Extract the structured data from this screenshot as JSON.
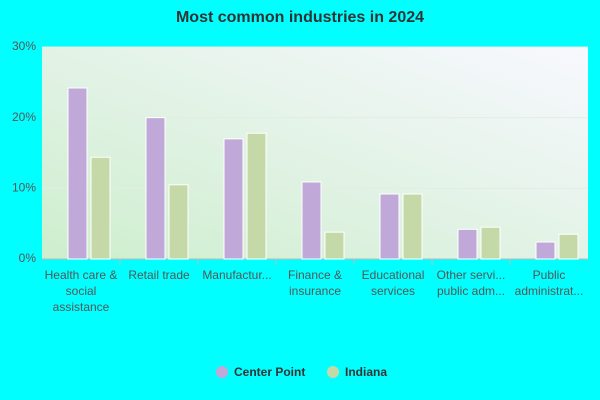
{
  "chart_data": {
    "type": "bar",
    "title": "Most common industries in 2024",
    "categories": [
      "Health care & social assistance",
      "Retail trade",
      "Manufactur...",
      "Finance & insurance",
      "Educational services",
      "Other servi... public adm...",
      "Public administrat..."
    ],
    "series": [
      {
        "name": "Center Point",
        "color": "#c0a8d8",
        "values": [
          24.2,
          20,
          17,
          10.9,
          9.2,
          4.2,
          2.4
        ]
      },
      {
        "name": "Indiana",
        "color": "#c5d9a8",
        "values": [
          14.4,
          10.5,
          17.8,
          3.8,
          9.2,
          4.5,
          3.5
        ]
      }
    ],
    "ylim": [
      0,
      30
    ],
    "yticks": [
      {
        "value": 0,
        "label": "0%"
      },
      {
        "value": 10,
        "label": "10%"
      },
      {
        "value": 20,
        "label": "20%"
      },
      {
        "value": 30,
        "label": "30%"
      }
    ],
    "grid": true
  }
}
